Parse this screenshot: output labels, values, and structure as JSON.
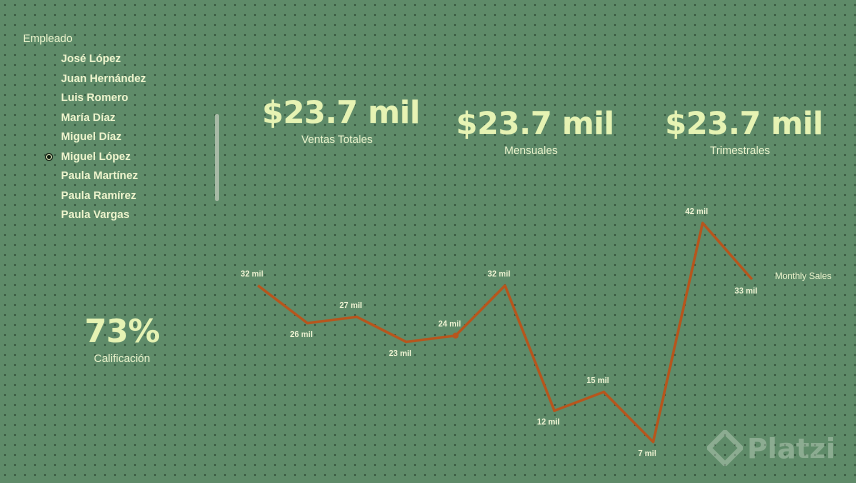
{
  "slicer": {
    "title": "Empleado",
    "items": [
      {
        "label": "José López",
        "selected": false
      },
      {
        "label": "Juan Hernández",
        "selected": false
      },
      {
        "label": "Luis Romero",
        "selected": false
      },
      {
        "label": "María Díaz",
        "selected": false
      },
      {
        "label": "Miguel Díaz",
        "selected": false
      },
      {
        "label": "Miguel López",
        "selected": true
      },
      {
        "label": "Paula Martínez",
        "selected": false
      },
      {
        "label": "Paula Ramírez",
        "selected": false
      },
      {
        "label": "Paula Vargas",
        "selected": false
      }
    ]
  },
  "cards": {
    "ventas_totales": {
      "value": "$23.7 mil",
      "label": "Ventas Totales"
    },
    "mensuales": {
      "value": "$23.7 mil",
      "label": "Mensuales"
    },
    "trimestrales": {
      "value": "$23.7 mil",
      "label": "Trimestrales"
    },
    "calificacion": {
      "value": "73%",
      "label": "Calificación"
    }
  },
  "chart_data": {
    "type": "line",
    "series": [
      {
        "name": "Monthly Sales",
        "values": [
          32,
          26,
          27,
          23,
          24,
          32,
          12,
          15,
          7,
          42,
          33
        ],
        "labels": [
          "32 mil",
          "26 mil",
          "27 mil",
          "23 mil",
          "24 mil",
          "32 mil",
          "12 mil",
          "15 mil",
          "7 mil",
          "42 mil",
          "33 mil"
        ]
      }
    ],
    "unit": "mil",
    "grid": false,
    "legend": "right",
    "color": "#b8551c",
    "ylim": [
      7,
      42
    ]
  },
  "watermark": {
    "text": "Platzi"
  },
  "colors": {
    "background": "#5f8b69",
    "accent_text": "#e6f3b3",
    "line": "#b8551c"
  }
}
